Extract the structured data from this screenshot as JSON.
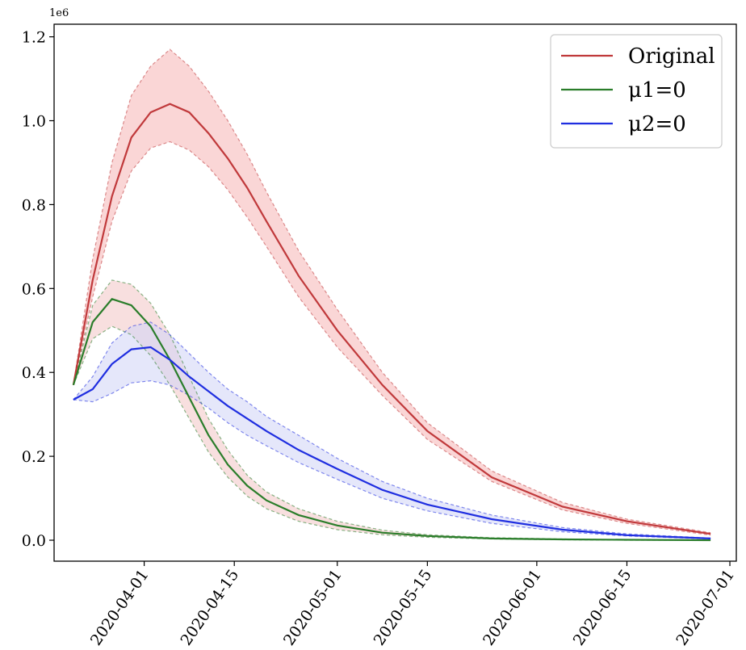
{
  "chart_data": {
    "type": "line",
    "y_offset_label": "1e6",
    "x_ticks": [
      "2020-04-01",
      "2020-04-15",
      "2020-05-01",
      "2020-05-15",
      "2020-06-01",
      "2020-06-15",
      "2020-07-01"
    ],
    "y_ticks": [
      "0.0",
      "0.2",
      "0.4",
      "0.6",
      "0.8",
      "1.0",
      "1.2"
    ],
    "xlim": [
      "2020-03-18",
      "2020-07-02"
    ],
    "ylim": [
      -0.05,
      1.23
    ],
    "grid": false,
    "legend_position": "top-right",
    "x": [
      "2020-03-21",
      "2020-03-24",
      "2020-03-27",
      "2020-03-30",
      "2020-04-02",
      "2020-04-05",
      "2020-04-08",
      "2020-04-11",
      "2020-04-14",
      "2020-04-17",
      "2020-04-20",
      "2020-04-25",
      "2020-05-01",
      "2020-05-08",
      "2020-05-15",
      "2020-05-25",
      "2020-06-05",
      "2020-06-15",
      "2020-06-28"
    ],
    "series": [
      {
        "name": "Original",
        "color": "#c0393b",
        "band_color": "#f5b5b5",
        "values": [
          0.37,
          0.62,
          0.82,
          0.96,
          1.02,
          1.04,
          1.02,
          0.97,
          0.91,
          0.84,
          0.76,
          0.63,
          0.5,
          0.37,
          0.26,
          0.15,
          0.08,
          0.045,
          0.015
        ],
        "lower": [
          0.37,
          0.58,
          0.76,
          0.88,
          0.935,
          0.95,
          0.93,
          0.89,
          0.835,
          0.77,
          0.7,
          0.58,
          0.46,
          0.345,
          0.24,
          0.14,
          0.072,
          0.04,
          0.012
        ],
        "upper": [
          0.37,
          0.67,
          0.9,
          1.06,
          1.13,
          1.17,
          1.13,
          1.07,
          1.0,
          0.92,
          0.83,
          0.69,
          0.55,
          0.4,
          0.28,
          0.165,
          0.09,
          0.05,
          0.018
        ]
      },
      {
        "name": "μ1=0",
        "color": "#2a7d2a",
        "band_color": "#f2c4c4",
        "values": [
          0.37,
          0.52,
          0.575,
          0.56,
          0.51,
          0.43,
          0.34,
          0.25,
          0.18,
          0.13,
          0.095,
          0.06,
          0.035,
          0.018,
          0.01,
          0.004,
          0.002,
          0.001,
          0.0
        ],
        "lower": [
          0.37,
          0.48,
          0.51,
          0.49,
          0.44,
          0.37,
          0.29,
          0.21,
          0.15,
          0.105,
          0.075,
          0.045,
          0.025,
          0.013,
          0.007,
          0.003,
          0.001,
          0.0,
          0.0
        ],
        "upper": [
          0.37,
          0.56,
          0.62,
          0.61,
          0.565,
          0.49,
          0.39,
          0.29,
          0.215,
          0.155,
          0.115,
          0.075,
          0.045,
          0.024,
          0.013,
          0.006,
          0.003,
          0.001,
          0.0
        ]
      },
      {
        "name": "μ2=0",
        "color": "#1f2ee0",
        "band_color": "#cfd4f6",
        "values": [
          0.335,
          0.36,
          0.42,
          0.455,
          0.46,
          0.43,
          0.39,
          0.355,
          0.32,
          0.29,
          0.26,
          0.215,
          0.17,
          0.12,
          0.085,
          0.05,
          0.025,
          0.012,
          0.004
        ],
        "lower": [
          0.335,
          0.33,
          0.35,
          0.375,
          0.38,
          0.37,
          0.345,
          0.315,
          0.28,
          0.25,
          0.225,
          0.185,
          0.145,
          0.1,
          0.07,
          0.04,
          0.02,
          0.01,
          0.003
        ],
        "upper": [
          0.335,
          0.39,
          0.47,
          0.51,
          0.52,
          0.49,
          0.445,
          0.4,
          0.36,
          0.33,
          0.295,
          0.25,
          0.195,
          0.14,
          0.1,
          0.06,
          0.03,
          0.015,
          0.005
        ]
      }
    ]
  }
}
